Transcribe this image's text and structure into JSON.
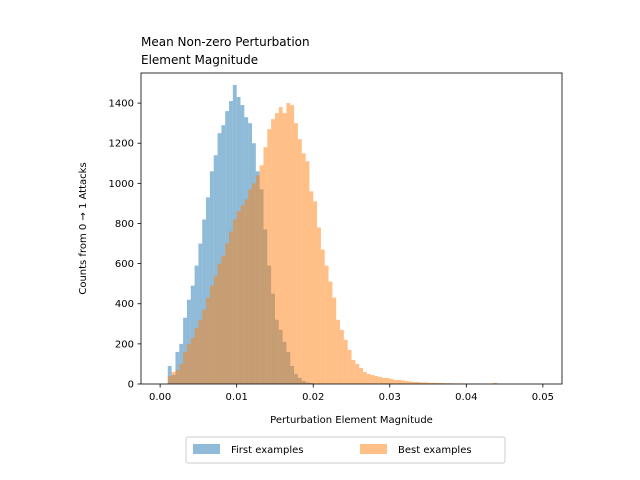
{
  "chart_data": {
    "type": "histogram",
    "title": [
      "Mean Non-zero Perturbation",
      "Element Magnitude"
    ],
    "xlabel": "Perturbation Element Magnitude",
    "ylabel": "Counts from 0 → 1 Attacks",
    "xlim": [
      -0.0025,
      0.0525
    ],
    "ylim": [
      0,
      1550
    ],
    "xticks": [
      0.0,
      0.01,
      0.02,
      0.03,
      0.04,
      0.05
    ],
    "xtick_labels": [
      "0.00",
      "0.01",
      "0.02",
      "0.03",
      "0.04",
      "0.05"
    ],
    "yticks": [
      0,
      200,
      400,
      600,
      800,
      1000,
      1200,
      1400
    ],
    "yticks_labels": [
      "0",
      "200",
      "400",
      "600",
      "800",
      "1000",
      "1200",
      "1400"
    ],
    "grid": false,
    "legend_placement": "below-center",
    "alpha": 0.5,
    "series": [
      {
        "name": "First examples",
        "color": "#1f77b4",
        "bins": [
          [
            0.001,
            0.0015,
            90
          ],
          [
            0.0015,
            0.002,
            45
          ],
          [
            0.002,
            0.0025,
            160
          ],
          [
            0.0025,
            0.003,
            200
          ],
          [
            0.003,
            0.0035,
            330
          ],
          [
            0.0035,
            0.004,
            420
          ],
          [
            0.004,
            0.0045,
            490
          ],
          [
            0.0045,
            0.005,
            590
          ],
          [
            0.005,
            0.0055,
            700
          ],
          [
            0.0055,
            0.006,
            820
          ],
          [
            0.006,
            0.0065,
            930
          ],
          [
            0.0065,
            0.007,
            1060
          ],
          [
            0.007,
            0.0075,
            1140
          ],
          [
            0.0075,
            0.008,
            1250
          ],
          [
            0.008,
            0.0085,
            1290
          ],
          [
            0.0085,
            0.009,
            1360
          ],
          [
            0.009,
            0.0095,
            1410
          ],
          [
            0.0095,
            0.01,
            1490
          ],
          [
            0.01,
            0.0105,
            1430
          ],
          [
            0.0105,
            0.011,
            1390
          ],
          [
            0.011,
            0.0115,
            1330
          ],
          [
            0.0115,
            0.012,
            1300
          ],
          [
            0.012,
            0.0125,
            1200
          ],
          [
            0.0125,
            0.013,
            1060
          ],
          [
            0.013,
            0.0135,
            970
          ],
          [
            0.0135,
            0.014,
            770
          ],
          [
            0.014,
            0.0145,
            590
          ],
          [
            0.0145,
            0.015,
            450
          ],
          [
            0.015,
            0.0155,
            320
          ],
          [
            0.0155,
            0.016,
            270
          ],
          [
            0.016,
            0.0165,
            210
          ],
          [
            0.0165,
            0.017,
            160
          ],
          [
            0.017,
            0.0175,
            90
          ],
          [
            0.0175,
            0.018,
            50
          ],
          [
            0.018,
            0.0185,
            30
          ],
          [
            0.0185,
            0.019,
            15
          ],
          [
            0.019,
            0.0195,
            8
          ],
          [
            0.0195,
            0.02,
            5
          ]
        ]
      },
      {
        "name": "Best examples",
        "color": "#ff7f0e",
        "bins": [
          [
            0.001,
            0.0015,
            40
          ],
          [
            0.0015,
            0.002,
            60
          ],
          [
            0.002,
            0.0025,
            70
          ],
          [
            0.0025,
            0.003,
            100
          ],
          [
            0.003,
            0.0035,
            160
          ],
          [
            0.0035,
            0.004,
            200
          ],
          [
            0.004,
            0.0045,
            230
          ],
          [
            0.0045,
            0.005,
            280
          ],
          [
            0.005,
            0.0055,
            320
          ],
          [
            0.0055,
            0.006,
            370
          ],
          [
            0.006,
            0.0065,
            430
          ],
          [
            0.0065,
            0.007,
            490
          ],
          [
            0.007,
            0.0075,
            540
          ],
          [
            0.0075,
            0.008,
            600
          ],
          [
            0.008,
            0.0085,
            640
          ],
          [
            0.0085,
            0.009,
            700
          ],
          [
            0.009,
            0.0095,
            760
          ],
          [
            0.0095,
            0.01,
            820
          ],
          [
            0.01,
            0.0105,
            860
          ],
          [
            0.0105,
            0.011,
            890
          ],
          [
            0.011,
            0.0115,
            920
          ],
          [
            0.0115,
            0.012,
            970
          ],
          [
            0.012,
            0.0125,
            1000
          ],
          [
            0.0125,
            0.013,
            1040
          ],
          [
            0.013,
            0.0135,
            1090
          ],
          [
            0.0135,
            0.014,
            1180
          ],
          [
            0.014,
            0.0145,
            1270
          ],
          [
            0.0145,
            0.015,
            1320
          ],
          [
            0.015,
            0.0155,
            1350
          ],
          [
            0.0155,
            0.016,
            1380
          ],
          [
            0.016,
            0.0165,
            1350
          ],
          [
            0.0165,
            0.017,
            1400
          ],
          [
            0.017,
            0.0175,
            1390
          ],
          [
            0.0175,
            0.018,
            1300
          ],
          [
            0.018,
            0.0185,
            1220
          ],
          [
            0.0185,
            0.019,
            1150
          ],
          [
            0.019,
            0.0195,
            1110
          ],
          [
            0.0195,
            0.02,
            960
          ],
          [
            0.02,
            0.0205,
            910
          ],
          [
            0.0205,
            0.021,
            780
          ],
          [
            0.021,
            0.0215,
            670
          ],
          [
            0.0215,
            0.022,
            590
          ],
          [
            0.022,
            0.0225,
            510
          ],
          [
            0.0225,
            0.023,
            430
          ],
          [
            0.023,
            0.0235,
            320
          ],
          [
            0.0235,
            0.024,
            270
          ],
          [
            0.024,
            0.0245,
            220
          ],
          [
            0.0245,
            0.025,
            170
          ],
          [
            0.025,
            0.0255,
            120
          ],
          [
            0.0255,
            0.026,
            100
          ],
          [
            0.026,
            0.0265,
            80
          ],
          [
            0.0265,
            0.027,
            60
          ],
          [
            0.027,
            0.0275,
            50
          ],
          [
            0.0275,
            0.028,
            45
          ],
          [
            0.028,
            0.0285,
            40
          ],
          [
            0.0285,
            0.029,
            35
          ],
          [
            0.029,
            0.0295,
            30
          ],
          [
            0.0295,
            0.03,
            30
          ],
          [
            0.03,
            0.0305,
            25
          ],
          [
            0.0305,
            0.031,
            20
          ],
          [
            0.031,
            0.0315,
            20
          ],
          [
            0.0315,
            0.032,
            18
          ],
          [
            0.032,
            0.0325,
            15
          ],
          [
            0.0325,
            0.033,
            12
          ],
          [
            0.033,
            0.0335,
            10
          ],
          [
            0.0335,
            0.034,
            10
          ],
          [
            0.034,
            0.0345,
            8
          ],
          [
            0.0345,
            0.035,
            8
          ],
          [
            0.035,
            0.0355,
            6
          ],
          [
            0.0355,
            0.036,
            6
          ],
          [
            0.036,
            0.0365,
            5
          ],
          [
            0.0365,
            0.037,
            5
          ],
          [
            0.037,
            0.0375,
            4
          ],
          [
            0.0375,
            0.038,
            4
          ],
          [
            0.038,
            0.0385,
            3
          ],
          [
            0.0385,
            0.039,
            3
          ],
          [
            0.039,
            0.0395,
            3
          ],
          [
            0.0395,
            0.04,
            2
          ],
          [
            0.04,
            0.0405,
            2
          ],
          [
            0.0405,
            0.041,
            2
          ],
          [
            0.041,
            0.0415,
            2
          ],
          [
            0.0415,
            0.042,
            2
          ],
          [
            0.042,
            0.0425,
            1
          ],
          [
            0.0425,
            0.043,
            1
          ],
          [
            0.043,
            0.0435,
            1
          ],
          [
            0.0435,
            0.044,
            5
          ],
          [
            0.044,
            0.0445,
            1
          ],
          [
            0.0445,
            0.045,
            1
          ]
        ]
      }
    ]
  }
}
